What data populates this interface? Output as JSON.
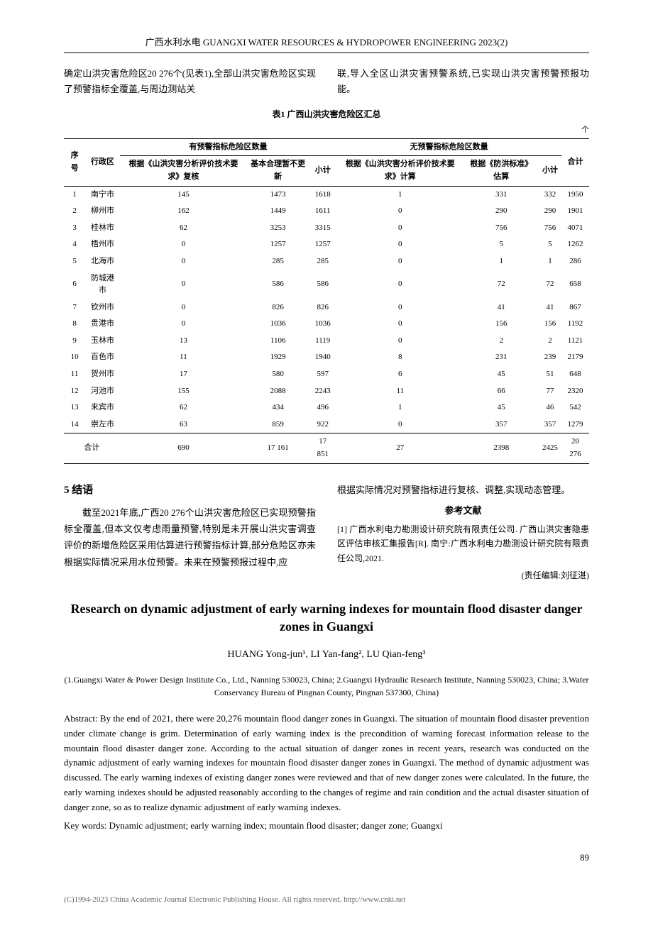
{
  "journal_header": "广西水利水电  GUANGXI WATER RESOURCES & HYDROPOWER ENGINEERING  2023(2)",
  "intro": {
    "left": "确定山洪灾害危险区20 276个(见表1),全部山洪灾害危险区实现了预警指标全覆盖,与周边测站关",
    "right": "联,导入全区山洪灾害预警系统,已实现山洪灾害预警预报功能。"
  },
  "table": {
    "caption": "表1  广西山洪灾害危险区汇总",
    "unit": "个",
    "headers": {
      "row1": [
        "序号",
        "行政区",
        "有预警指标危险区数量",
        "无预警指标危险区数量",
        "合计"
      ],
      "row2": [
        "根据《山洪灾害分析评价技术要求》复核",
        "基本合理暂不更新",
        "小计",
        "根据《山洪灾害分析评价技术要求》计算",
        "根据《防洪标准》估算",
        "小计"
      ]
    },
    "rows": [
      [
        "1",
        "南宁市",
        "145",
        "1473",
        "1618",
        "1",
        "331",
        "332",
        "1950"
      ],
      [
        "2",
        "柳州市",
        "162",
        "1449",
        "1611",
        "0",
        "290",
        "290",
        "1901"
      ],
      [
        "3",
        "桂林市",
        "62",
        "3253",
        "3315",
        "0",
        "756",
        "756",
        "4071"
      ],
      [
        "4",
        "梧州市",
        "0",
        "1257",
        "1257",
        "0",
        "5",
        "5",
        "1262"
      ],
      [
        "5",
        "北海市",
        "0",
        "285",
        "285",
        "0",
        "1",
        "1",
        "286"
      ],
      [
        "6",
        "防城港市",
        "0",
        "586",
        "586",
        "0",
        "72",
        "72",
        "658"
      ],
      [
        "7",
        "钦州市",
        "0",
        "826",
        "826",
        "0",
        "41",
        "41",
        "867"
      ],
      [
        "8",
        "贵港市",
        "0",
        "1036",
        "1036",
        "0",
        "156",
        "156",
        "1192"
      ],
      [
        "9",
        "玉林市",
        "13",
        "1106",
        "1119",
        "0",
        "2",
        "2",
        "1121"
      ],
      [
        "10",
        "百色市",
        "11",
        "1929",
        "1940",
        "8",
        "231",
        "239",
        "2179"
      ],
      [
        "11",
        "贺州市",
        "17",
        "580",
        "597",
        "6",
        "45",
        "51",
        "648"
      ],
      [
        "12",
        "河池市",
        "155",
        "2088",
        "2243",
        "11",
        "66",
        "77",
        "2320"
      ],
      [
        "13",
        "来宾市",
        "62",
        "434",
        "496",
        "1",
        "45",
        "46",
        "542"
      ],
      [
        "14",
        "崇左市",
        "63",
        "859",
        "922",
        "0",
        "357",
        "357",
        "1279"
      ]
    ],
    "total_row": [
      "合计",
      "690",
      "17 161",
      "17 851",
      "27",
      "2398",
      "2425",
      "20 276"
    ]
  },
  "section5": {
    "title": "5  结语",
    "body_left": "截至2021年底,广西20 276个山洪灾害危险区已实现预警指标全覆盖,但本文仅考虑雨量预警,特别是未开展山洪灾害调查评价的新增危险区采用估算进行预警指标计算,部分危险区亦未根据实际情况采用水位预警。未来在预警预报过程中,应",
    "body_right": "根据实际情况对预警指标进行复核、调整,实现动态管理。"
  },
  "references": {
    "title": "参考文献",
    "items": [
      "[1]  广西水利电力勘测设计研究院有限责任公司. 广西山洪灾害隐患区评估审核汇集报告[R]. 南宁:广西水利电力勘测设计研究院有限责任公司,2021."
    ],
    "editor": "(责任编辑:刘征湛)"
  },
  "english": {
    "title": "Research on dynamic adjustment of early warning indexes for mountain flood disaster danger zones in Guangxi",
    "authors": "HUANG Yong-jun¹, LI Yan-fang², LU Qian-feng³",
    "affiliations": "(1.Guangxi Water & Power Design Institute Co., Ltd., Nanning 530023, China; 2.Guangxi Hydraulic Research Institute, Nanning 530023, China; 3.Water Conservancy Bureau of Pingnan County, Pingnan 537300, China)",
    "abstract": "Abstract: By the end of 2021, there were 20,276 mountain flood danger zones in Guangxi. The situation of mountain flood disaster prevention under climate change is grim. Determination of early warning index is the precondition of warning forecast information release to the mountain flood disaster danger zone. According to the actual situation of danger zones in recent years, research was conducted on the dynamic adjustment of early warning indexes for mountain flood disaster danger zones in Guangxi. The method of dynamic adjustment was discussed. The early warning indexes of existing danger zones were reviewed and that of new danger zones were calculated. In the future, the early warning indexes should be adjusted reasonably according to the changes of regime and rain condition and the actual disaster situation of danger zone, so as to realize dynamic adjustment of early warning indexes.",
    "keywords": "Key words: Dynamic adjustment; early warning index; mountain flood disaster; danger zone; Guangxi"
  },
  "page_number": "89",
  "footer": "(C)1994-2023 China Academic Journal Electronic Publishing House. All rights reserved.   http://www.cnki.net"
}
